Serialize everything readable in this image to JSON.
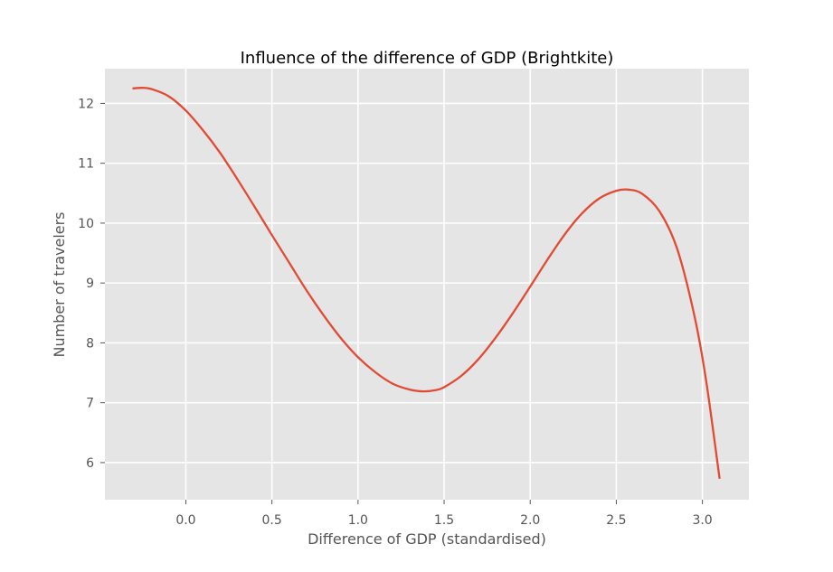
{
  "chart_data": {
    "type": "line",
    "title": "Influence of the difference of GDP (Brightkite)",
    "xlabel": "Difference of GDP (standardised)",
    "ylabel": "Number of travelers",
    "xlim": [
      -0.47,
      3.27
    ],
    "ylim": [
      5.38,
      12.58
    ],
    "grid": true,
    "x_ticks": [
      0.0,
      0.5,
      1.0,
      1.5,
      2.0,
      2.5,
      3.0
    ],
    "x_tick_labels": [
      "0.0",
      "0.5",
      "1.0",
      "1.5",
      "2.0",
      "2.5",
      "3.0"
    ],
    "y_ticks": [
      6,
      7,
      8,
      9,
      10,
      11,
      12
    ],
    "y_tick_labels": [
      "6",
      "7",
      "8",
      "9",
      "10",
      "11",
      "12"
    ],
    "colors": {
      "line": "#E24A33",
      "plot_bg": "#E5E5E5",
      "grid": "#FFFFFF"
    },
    "series": [
      {
        "x": [
          -0.31,
          -0.25,
          -0.2,
          -0.1,
          0.0,
          0.1,
          0.2,
          0.3,
          0.4,
          0.5,
          0.6,
          0.7,
          0.8,
          0.9,
          1.0,
          1.1,
          1.2,
          1.3,
          1.38,
          1.45,
          1.5,
          1.6,
          1.7,
          1.8,
          1.9,
          2.0,
          2.1,
          2.2,
          2.3,
          2.4,
          2.5,
          2.57,
          2.65,
          2.75,
          2.85,
          2.95,
          3.02,
          3.1
        ],
        "y": [
          12.25,
          12.26,
          12.24,
          12.12,
          11.88,
          11.55,
          11.17,
          10.73,
          10.27,
          9.8,
          9.34,
          8.88,
          8.46,
          8.08,
          7.76,
          7.51,
          7.32,
          7.22,
          7.19,
          7.21,
          7.26,
          7.45,
          7.73,
          8.09,
          8.5,
          8.94,
          9.39,
          9.81,
          10.16,
          10.41,
          10.54,
          10.56,
          10.49,
          10.2,
          9.6,
          8.5,
          7.4,
          5.73
        ]
      }
    ]
  }
}
